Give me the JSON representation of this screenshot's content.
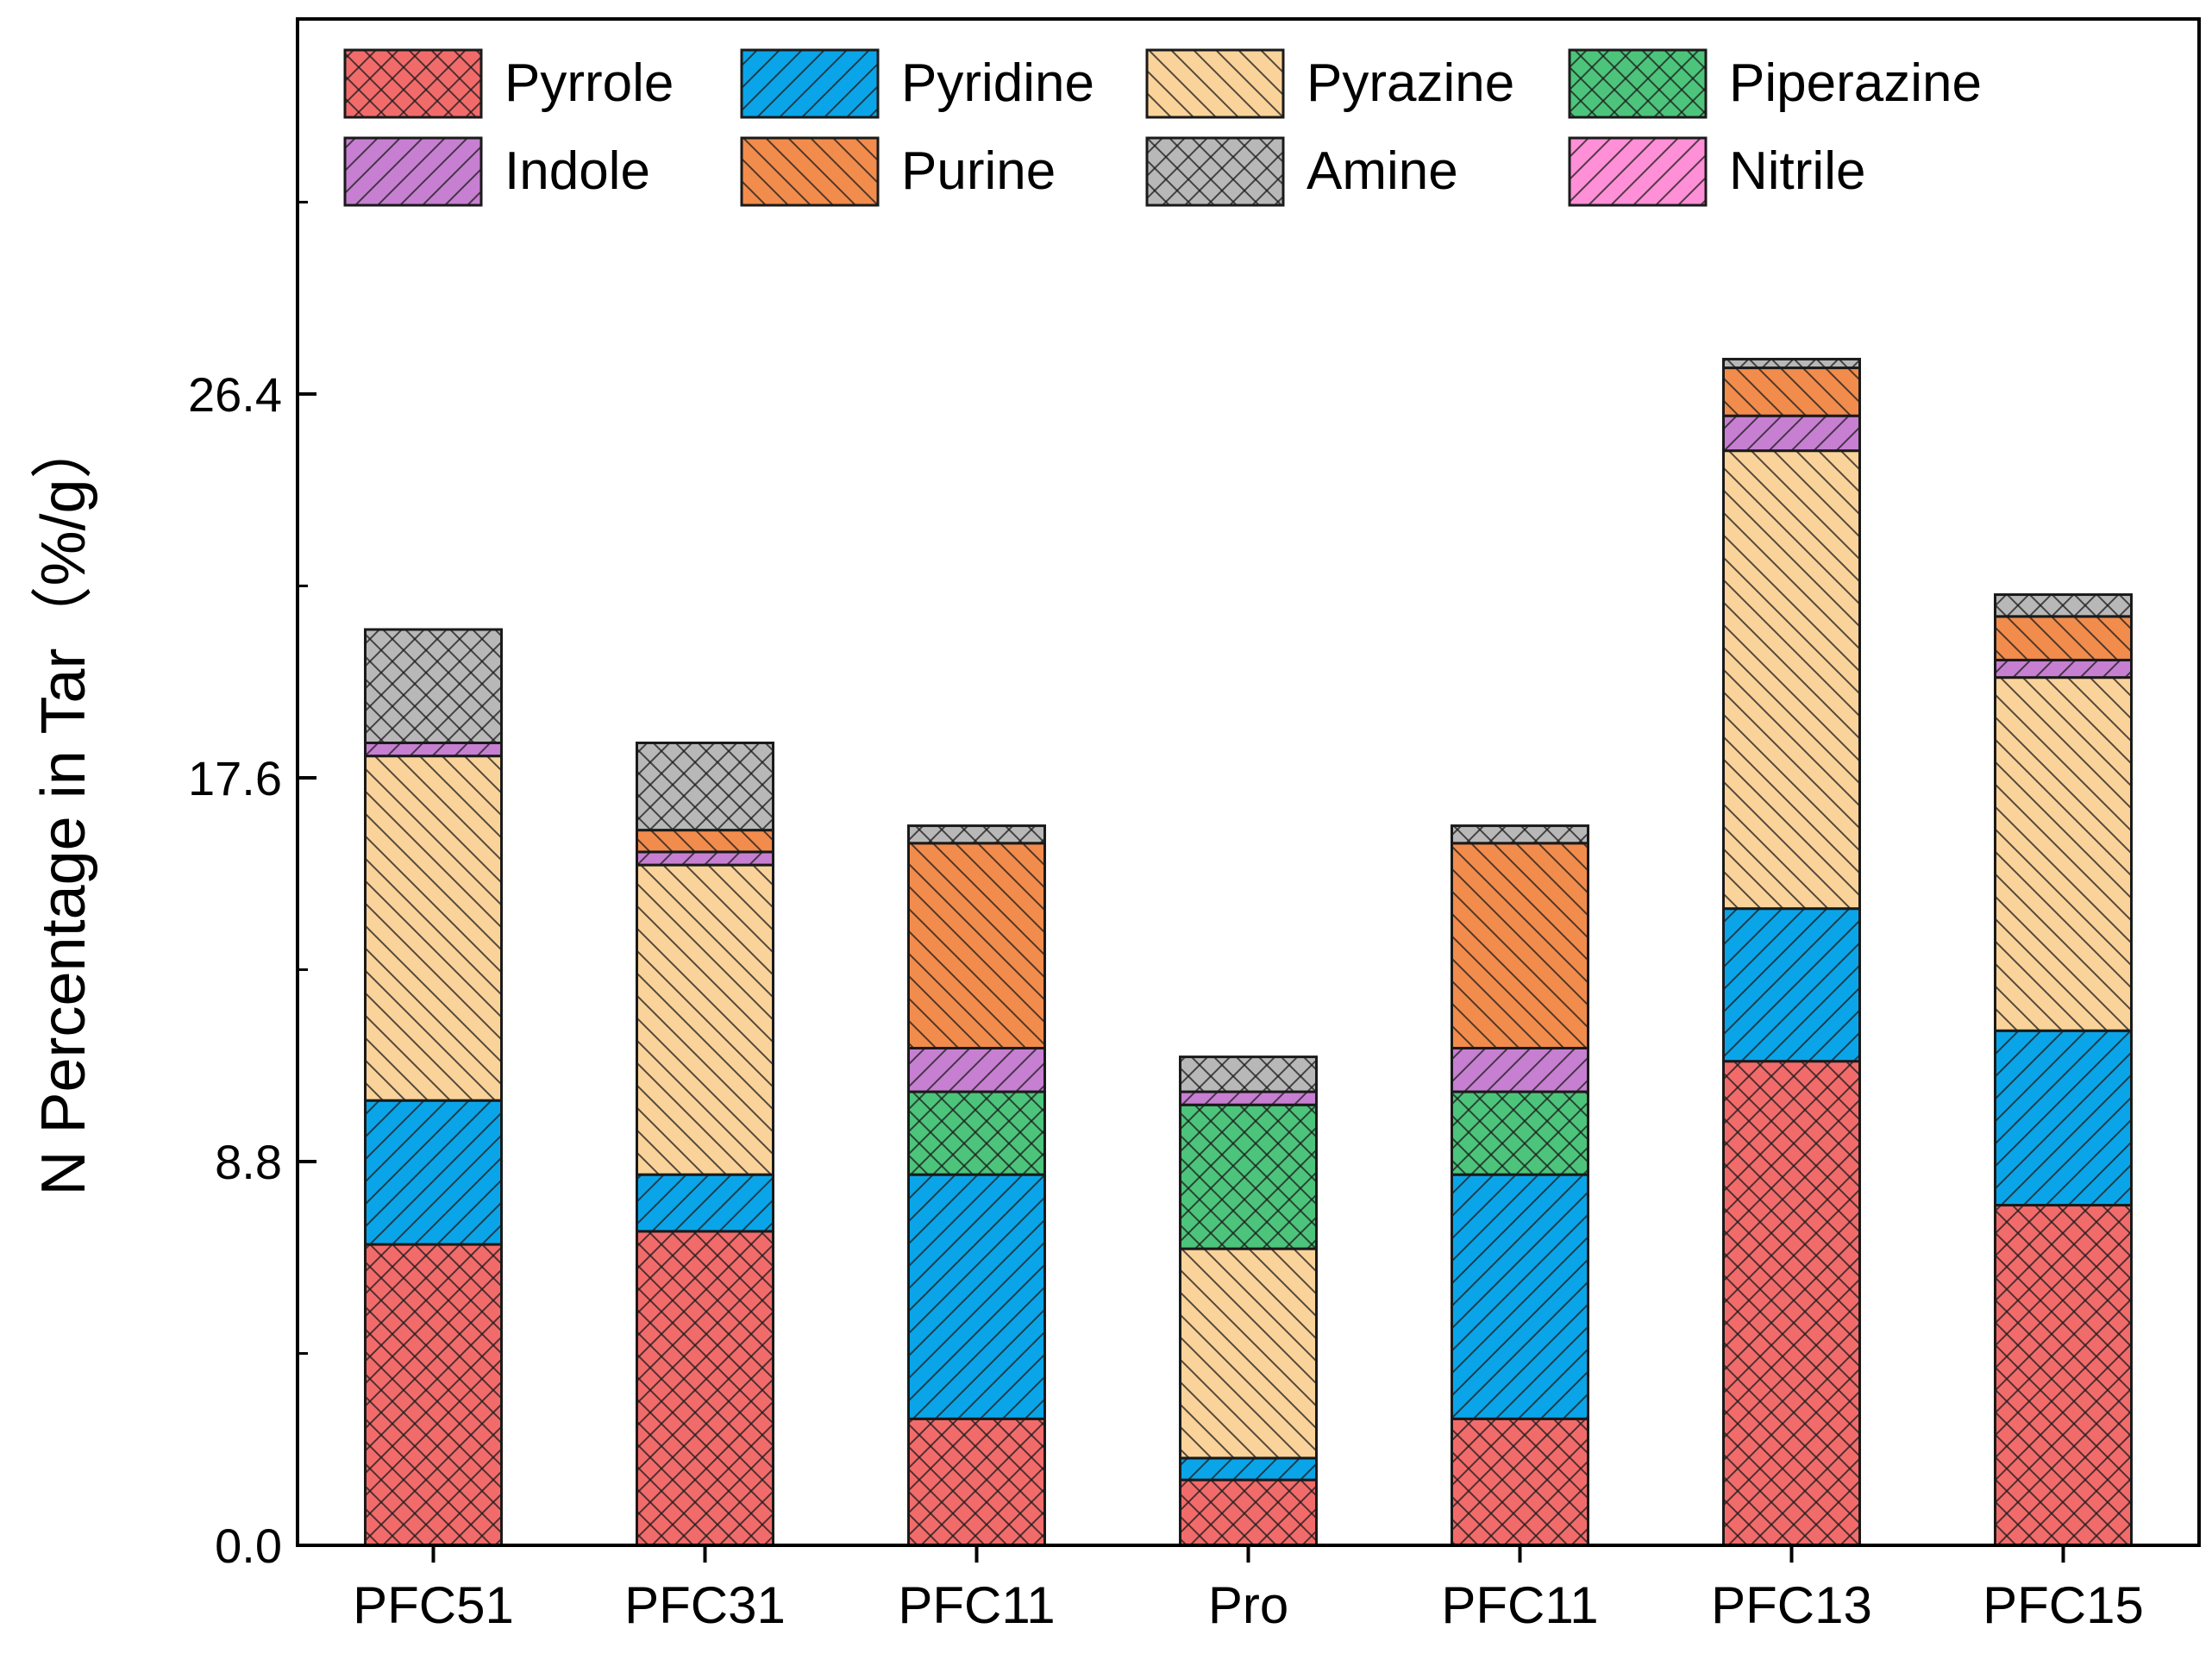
{
  "chart_data": {
    "type": "bar",
    "stacked": true,
    "title": "",
    "xlabel": "",
    "ylabel": "N Percentage in Tar（%/g）",
    "ylim": [
      0,
      35
    ],
    "yticks": [
      0.0,
      8.8,
      17.6,
      26.4
    ],
    "ytick_labels": [
      "0.0",
      "8.8",
      "17.6",
      "26.4"
    ],
    "grid": false,
    "legend_position": "top",
    "categories": [
      "PFC51",
      "PFC31",
      "PFC11",
      "Pro",
      "PFC11",
      "PFC13",
      "PFC15"
    ],
    "series": [
      {
        "name": "Pyrrole",
        "color": "#f26b6b",
        "pattern": "crosshatch",
        "values": [
          6.9,
          7.2,
          2.9,
          1.5,
          2.9,
          11.1,
          7.8
        ]
      },
      {
        "name": "Pyridine",
        "color": "#0aa5e8",
        "pattern": "diag-right",
        "values": [
          3.3,
          1.3,
          5.6,
          0.5,
          5.6,
          3.5,
          4.0
        ]
      },
      {
        "name": "Pyrazine",
        "color": "#fad39a",
        "pattern": "diag-left",
        "values": [
          7.9,
          7.1,
          0.0,
          4.8,
          0.0,
          10.5,
          8.1
        ]
      },
      {
        "name": "Piperazine",
        "color": "#4dc47b",
        "pattern": "crosshatch",
        "values": [
          0.0,
          0.0,
          1.9,
          3.3,
          1.9,
          0.0,
          0.0
        ]
      },
      {
        "name": "Indole",
        "color": "#c77fd1",
        "pattern": "diag-right",
        "values": [
          0.3,
          0.3,
          1.0,
          0.3,
          1.0,
          0.8,
          0.4
        ]
      },
      {
        "name": "Purine",
        "color": "#f28c4c",
        "pattern": "diag-left",
        "values": [
          0.0,
          0.5,
          4.7,
          0.0,
          4.7,
          1.1,
          1.0
        ]
      },
      {
        "name": "Amine",
        "color": "#b8b8b8",
        "pattern": "crosshatch",
        "values": [
          2.6,
          2.0,
          0.4,
          0.8,
          0.4,
          0.2,
          0.5
        ]
      },
      {
        "name": "Nitrile",
        "color": "#ff8fd6",
        "pattern": "diag-right",
        "values": [
          0.0,
          0.0,
          0.0,
          0.0,
          0.0,
          0.0,
          0.0
        ]
      }
    ]
  }
}
